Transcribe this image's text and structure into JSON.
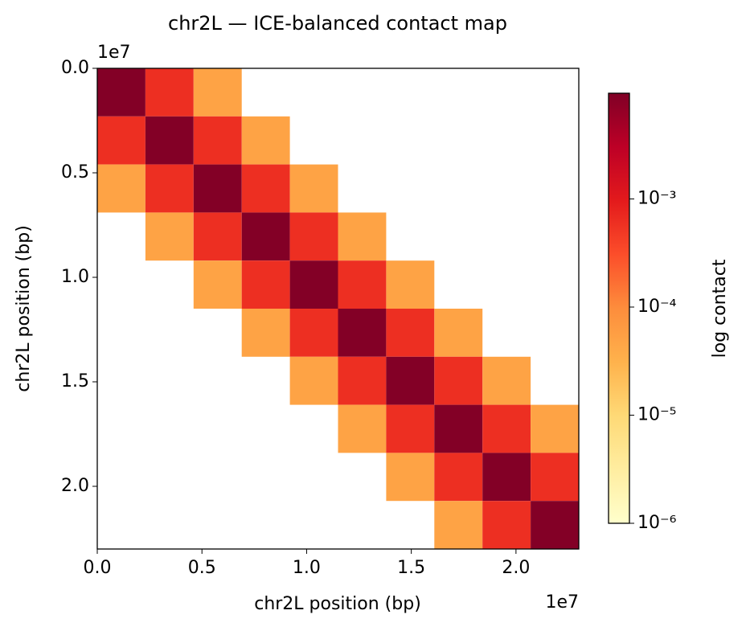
{
  "chart_data": {
    "type": "heatmap",
    "title": "chr2L — ICE-balanced contact map",
    "xlabel": "chr2L position (bp)",
    "ylabel": "chr2L position (bp)",
    "colorbar_label": "log contact",
    "x_offset_label": "1e7",
    "y_offset_label": "1e7",
    "xlim": [
      0,
      23000000
    ],
    "ylim": [
      0,
      23000000
    ],
    "xticks": [
      {
        "value": 0,
        "label": "0.0"
      },
      {
        "value": 5000000,
        "label": "0.5"
      },
      {
        "value": 10000000,
        "label": "1.0"
      },
      {
        "value": 15000000,
        "label": "1.5"
      },
      {
        "value": 20000000,
        "label": "2.0"
      }
    ],
    "yticks": [
      {
        "value": 0,
        "label": "0.0"
      },
      {
        "value": 5000000,
        "label": "0.5"
      },
      {
        "value": 10000000,
        "label": "1.0"
      },
      {
        "value": 15000000,
        "label": "1.5"
      },
      {
        "value": 20000000,
        "label": "2.0"
      }
    ],
    "y_inverted": true,
    "bins": [
      0,
      2300000,
      4600000,
      6900000,
      9200000,
      11500000,
      13800000,
      16100000,
      18400000,
      20700000,
      23000000
    ],
    "values": [
      [
        0.009,
        0.0006,
        5e-05,
        null,
        null,
        null,
        null,
        null,
        null,
        null
      ],
      [
        0.0006,
        0.009,
        0.0006,
        5e-05,
        null,
        null,
        null,
        null,
        null,
        null
      ],
      [
        5e-05,
        0.0006,
        0.009,
        0.0006,
        5e-05,
        null,
        null,
        null,
        null,
        null
      ],
      [
        null,
        5e-05,
        0.0006,
        0.009,
        0.0006,
        5e-05,
        null,
        null,
        null,
        null
      ],
      [
        null,
        null,
        5e-05,
        0.0006,
        0.009,
        0.0006,
        5e-05,
        null,
        null,
        null
      ],
      [
        null,
        null,
        null,
        5e-05,
        0.0006,
        0.009,
        0.0006,
        5e-05,
        null,
        null
      ],
      [
        null,
        null,
        null,
        null,
        5e-05,
        0.0006,
        0.009,
        0.0006,
        5e-05,
        null
      ],
      [
        null,
        null,
        null,
        null,
        null,
        5e-05,
        0.0006,
        0.009,
        0.0006,
        5e-05
      ],
      [
        null,
        null,
        null,
        null,
        null,
        null,
        5e-05,
        0.0006,
        0.009,
        0.0006
      ],
      [
        null,
        null,
        null,
        null,
        null,
        null,
        null,
        5e-05,
        0.0006,
        0.009
      ]
    ],
    "color_scale": "log",
    "clim": [
      1e-06,
      0.0095
    ],
    "cticks": [
      {
        "value": 1e-06,
        "label": "10⁻⁶"
      },
      {
        "value": 1e-05,
        "label": "10⁻⁵"
      },
      {
        "value": 0.0001,
        "label": "10⁻⁴"
      },
      {
        "value": 0.001,
        "label": "10⁻³"
      }
    ],
    "colormap": [
      "#ffffcc",
      "#ffeda0",
      "#fed976",
      "#feb24c",
      "#fd8d3c",
      "#fc4e2a",
      "#e31a1c",
      "#bd0026",
      "#800026"
    ]
  }
}
